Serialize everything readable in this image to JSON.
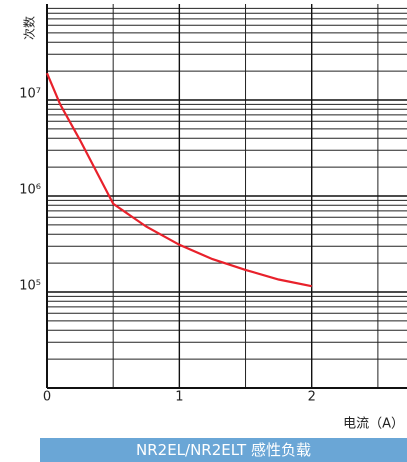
{
  "chart_data": {
    "type": "line",
    "y_label": "次数",
    "x_label": "电流（A）",
    "footer": "NR2EL/NR2ELT 感性负载",
    "x": [
      0,
      0.1,
      0.25,
      0.5,
      0.75,
      1,
      1.25,
      1.5,
      1.75,
      2
    ],
    "series": [
      {
        "name": "NR2EL/NR2ELT",
        "color": "#e8212b",
        "values": [
          19000000,
          9000000,
          3800000,
          830000,
          480000,
          310000,
          220000,
          170000,
          135000,
          115000
        ]
      }
    ],
    "xlim": [
      0,
      2.72
    ],
    "xticks": [
      0,
      1,
      2
    ],
    "ylim": [
      10000,
      100000000
    ],
    "yticks": [
      {
        "value": 100000,
        "label": "10⁵"
      },
      {
        "value": 1000000,
        "label": "10⁶"
      },
      {
        "value": 10000000,
        "label": "10⁷"
      }
    ],
    "log_y": true,
    "grid": true,
    "minor_grid": true
  }
}
